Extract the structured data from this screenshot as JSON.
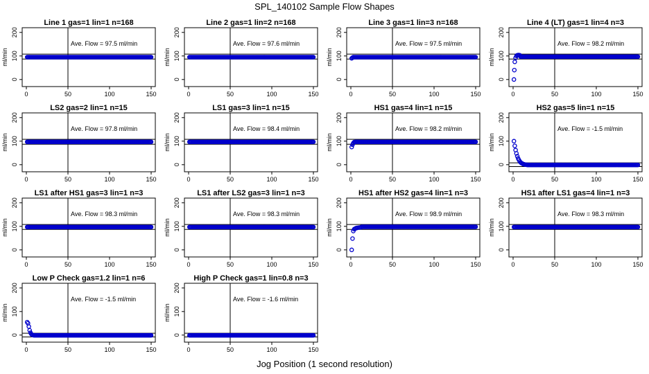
{
  "figure": {
    "title": "SPL_140102  Sample Flow Shapes",
    "xlabel": "Jog Position (1 second resolution)",
    "colors": {
      "points": "#0000cc",
      "axes": "#000000"
    }
  },
  "chart_data": [
    {
      "type": "scatter",
      "title": "Line 1 gas=1 lin=1 n=168",
      "ylabel": "ml/min",
      "annotation": "Ave. Flow = 97.5  ml/min",
      "xlim": [
        0,
        150
      ],
      "ylim": [
        -30,
        220
      ],
      "xticks": [
        0,
        50,
        100,
        150
      ],
      "yticks": [
        0,
        100,
        200
      ],
      "hlines": [
        87,
        108
      ],
      "vline": 50,
      "steady": 95,
      "initial": []
    },
    {
      "type": "scatter",
      "title": "Line 2 gas=1 lin=2 n=168",
      "ylabel": "ml/min",
      "annotation": "Ave. Flow = 97.6  ml/min",
      "xlim": [
        0,
        150
      ],
      "ylim": [
        -30,
        220
      ],
      "xticks": [
        0,
        50,
        100,
        150
      ],
      "yticks": [
        0,
        100,
        200
      ],
      "hlines": [
        87,
        108
      ],
      "vline": 50,
      "steady": 95,
      "initial": []
    },
    {
      "type": "scatter",
      "title": "Line 3 gas=1 lin=3 n=168",
      "ylabel": "ml/min",
      "annotation": "Ave. Flow = 97.5  ml/min",
      "xlim": [
        0,
        150
      ],
      "ylim": [
        -30,
        220
      ],
      "xticks": [
        0,
        50,
        100,
        150
      ],
      "yticks": [
        0,
        100,
        200
      ],
      "hlines": [
        87,
        108
      ],
      "vline": 50,
      "steady": 95,
      "initial": [
        [
          1,
          90
        ],
        [
          2,
          93
        ]
      ]
    },
    {
      "type": "scatter",
      "title": "Line 4 (LT) gas=1 lin=4 n=3",
      "ylabel": "ml/min",
      "annotation": "Ave. Flow = 98.2  ml/min",
      "xlim": [
        0,
        150
      ],
      "ylim": [
        -30,
        220
      ],
      "xticks": [
        0,
        50,
        100,
        150
      ],
      "yticks": [
        0,
        100,
        200
      ],
      "hlines": [
        87,
        108
      ],
      "vline": 50,
      "steady": 97,
      "initial": [
        [
          1,
          0
        ],
        [
          1.5,
          40
        ],
        [
          2,
          75
        ],
        [
          3,
          92
        ],
        [
          4,
          100
        ],
        [
          5,
          103
        ],
        [
          6,
          104
        ],
        [
          7,
          104
        ],
        [
          8,
          103
        ]
      ]
    },
    {
      "type": "scatter",
      "title": "LS2 gas=2 lin=1 n=15",
      "ylabel": "ml/min",
      "annotation": "Ave. Flow = 97.8  ml/min",
      "xlim": [
        0,
        150
      ],
      "ylim": [
        -30,
        220
      ],
      "xticks": [
        0,
        50,
        100,
        150
      ],
      "yticks": [
        0,
        100,
        200
      ],
      "hlines": [
        87,
        108
      ],
      "vline": 50,
      "steady": 97,
      "initial": []
    },
    {
      "type": "scatter",
      "title": "LS1 gas=3 lin=1 n=15",
      "ylabel": "ml/min",
      "annotation": "Ave. Flow = 98.4  ml/min",
      "xlim": [
        0,
        150
      ],
      "ylim": [
        -30,
        220
      ],
      "xticks": [
        0,
        50,
        100,
        150
      ],
      "yticks": [
        0,
        100,
        200
      ],
      "hlines": [
        87,
        108
      ],
      "vline": 50,
      "steady": 97,
      "initial": []
    },
    {
      "type": "scatter",
      "title": "HS1 gas=4 lin=1 n=15",
      "ylabel": "ml/min",
      "annotation": "Ave. Flow = 98.2  ml/min",
      "xlim": [
        0,
        150
      ],
      "ylim": [
        -30,
        220
      ],
      "xticks": [
        0,
        50,
        100,
        150
      ],
      "yticks": [
        0,
        100,
        200
      ],
      "hlines": [
        87,
        108
      ],
      "vline": 50,
      "steady": 97,
      "initial": [
        [
          1,
          75
        ],
        [
          2,
          85
        ],
        [
          3,
          92
        ],
        [
          4,
          96
        ],
        [
          5,
          97
        ]
      ]
    },
    {
      "type": "scatter",
      "title": "HS2 gas=5 lin=1 n=15",
      "ylabel": "ml/min",
      "annotation": "Ave. Flow = -1.5  ml/min",
      "xlim": [
        0,
        150
      ],
      "ylim": [
        -30,
        220
      ],
      "xticks": [
        0,
        50,
        100,
        150
      ],
      "yticks": [
        0,
        100,
        200
      ],
      "hlines": [
        -8,
        8
      ],
      "vline": 50,
      "steady": -1,
      "initial": [
        [
          1,
          100
        ],
        [
          2,
          80
        ],
        [
          3,
          62
        ],
        [
          4,
          48
        ],
        [
          5,
          36
        ],
        [
          6,
          27
        ],
        [
          7,
          20
        ],
        [
          8,
          14
        ],
        [
          9,
          10
        ],
        [
          10,
          7
        ],
        [
          11,
          5
        ],
        [
          12,
          3
        ],
        [
          13,
          2
        ],
        [
          14,
          1
        ],
        [
          15,
          0
        ],
        [
          16,
          0
        ],
        [
          17,
          -1
        ]
      ]
    },
    {
      "type": "scatter",
      "title": "LS1 after HS1 gas=3 lin=1 n=3",
      "ylabel": "ml/min",
      "annotation": "Ave. Flow = 98.3  ml/min",
      "xlim": [
        0,
        150
      ],
      "ylim": [
        -30,
        220
      ],
      "xticks": [
        0,
        50,
        100,
        150
      ],
      "yticks": [
        0,
        100,
        200
      ],
      "hlines": [
        87,
        108
      ],
      "vline": 50,
      "steady": 97,
      "initial": []
    },
    {
      "type": "scatter",
      "title": "LS1 after LS2 gas=3 lin=1 n=3",
      "ylabel": "ml/min",
      "annotation": "Ave. Flow = 98.3  ml/min",
      "xlim": [
        0,
        150
      ],
      "ylim": [
        -30,
        220
      ],
      "xticks": [
        0,
        50,
        100,
        150
      ],
      "yticks": [
        0,
        100,
        200
      ],
      "hlines": [
        87,
        108
      ],
      "vline": 50,
      "steady": 97,
      "initial": []
    },
    {
      "type": "scatter",
      "title": "HS1 after HS2 gas=4 lin=1 n=3",
      "ylabel": "ml/min",
      "annotation": "Ave. Flow = 98.9  ml/min",
      "xlim": [
        0,
        150
      ],
      "ylim": [
        -30,
        220
      ],
      "xticks": [
        0,
        50,
        100,
        150
      ],
      "yticks": [
        0,
        100,
        200
      ],
      "hlines": [
        87,
        108
      ],
      "vline": 50,
      "steady": 98,
      "initial": [
        [
          1,
          0
        ],
        [
          2,
          48
        ],
        [
          3,
          80
        ],
        [
          4,
          88
        ],
        [
          5,
          90
        ],
        [
          6,
          92
        ],
        [
          7,
          93
        ],
        [
          8,
          94
        ],
        [
          10,
          95
        ],
        [
          12,
          96
        ]
      ]
    },
    {
      "type": "scatter",
      "title": "HS1 after LS1 gas=4 lin=1 n=3",
      "ylabel": "ml/min",
      "annotation": "Ave. Flow = 98.3  ml/min",
      "xlim": [
        0,
        150
      ],
      "ylim": [
        -30,
        220
      ],
      "xticks": [
        0,
        50,
        100,
        150
      ],
      "yticks": [
        0,
        100,
        200
      ],
      "hlines": [
        87,
        108
      ],
      "vline": 50,
      "steady": 97,
      "initial": []
    },
    {
      "type": "scatter",
      "title": "Low P Check gas=1.2 lin=1 n=6",
      "ylabel": "ml/min",
      "annotation": "Ave. Flow = -1.5  ml/min",
      "xlim": [
        0,
        150
      ],
      "ylim": [
        -30,
        220
      ],
      "xticks": [
        0,
        50,
        100,
        150
      ],
      "yticks": [
        0,
        100,
        200
      ],
      "hlines": [
        -8,
        8
      ],
      "vline": 50,
      "steady": -1,
      "initial": [
        [
          1,
          55
        ],
        [
          2,
          50
        ],
        [
          3,
          36
        ],
        [
          4,
          20
        ],
        [
          5,
          10
        ],
        [
          6,
          4
        ],
        [
          7,
          1
        ],
        [
          8,
          0
        ],
        [
          9,
          -1
        ]
      ]
    },
    {
      "type": "scatter",
      "title": "High P Check gas=1 lin=0.8 n=3",
      "ylabel": "ml/min",
      "annotation": "Ave. Flow = -1.6  ml/min",
      "xlim": [
        0,
        150
      ],
      "ylim": [
        -30,
        220
      ],
      "xticks": [
        0,
        50,
        100,
        150
      ],
      "yticks": [
        0,
        100,
        200
      ],
      "hlines": [
        -8,
        8
      ],
      "vline": 50,
      "steady": -1,
      "initial": []
    }
  ]
}
